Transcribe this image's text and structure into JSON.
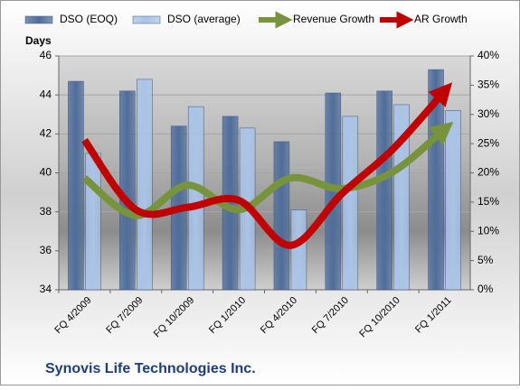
{
  "chart_data": {
    "type": "bar-line",
    "title": "Synovis Life Technologies Inc.",
    "y_label": "Days",
    "categories": [
      "FQ 4/2009",
      "FQ 7/2009",
      "FQ 10/2009",
      "FQ 1/2010",
      "FQ 4/2010",
      "FQ 7/2010",
      "FQ 10/2010",
      "FQ 1/2011"
    ],
    "series": [
      {
        "name": "DSO (EOQ)",
        "color": "#4f6d9a",
        "kind": "bar",
        "values": [
          44.7,
          44.2,
          42.4,
          42.9,
          41.6,
          44.1,
          44.2,
          45.3
        ]
      },
      {
        "name": "DSO (average)",
        "color": "#a9c4e8",
        "kind": "bar",
        "values": [
          41.0,
          44.8,
          43.4,
          42.3,
          38.1,
          42.9,
          43.5,
          43.2
        ]
      },
      {
        "name": "Revenue Growth",
        "color": "#77933c",
        "kind": "line",
        "axis": "y2",
        "values": [
          19.1,
          12.7,
          17.9,
          13.7,
          19.1,
          17.3,
          20.2,
          27.5
        ]
      },
      {
        "name": "AR Growth",
        "color": "#c00000",
        "kind": "line",
        "axis": "y2",
        "values": [
          25.6,
          13.7,
          14.1,
          15.3,
          7.6,
          16.4,
          24.1,
          34
        ]
      }
    ],
    "ylim": [
      34,
      46
    ],
    "yticks": [
      34,
      36,
      38,
      40,
      42,
      44,
      46
    ],
    "y2lim": [
      0,
      40
    ],
    "y2ticks": [
      {
        "value": 0,
        "label": "0%"
      },
      {
        "value": 5,
        "label": "5%"
      },
      {
        "value": 10,
        "label": "10%"
      },
      {
        "value": 15,
        "label": "15%"
      },
      {
        "value": 20,
        "label": "20%"
      },
      {
        "value": 25,
        "label": "25%"
      },
      {
        "value": 30,
        "label": "30%"
      },
      {
        "value": 35,
        "label": "35%"
      },
      {
        "value": 40,
        "label": "40%"
      }
    ],
    "legend": "top"
  }
}
